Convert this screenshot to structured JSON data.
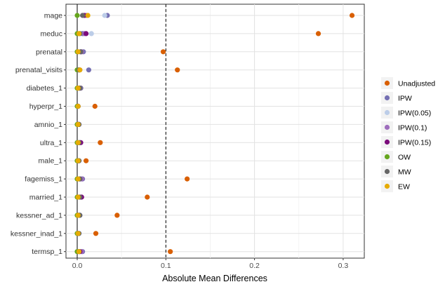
{
  "chart_data": {
    "type": "scatter",
    "title": "",
    "xlabel": "Absolute Mean Differences",
    "ylabel": "",
    "xlim": [
      -0.02,
      0.325
    ],
    "xticks": [
      0.0,
      0.1,
      0.2,
      0.3
    ],
    "xtick_labels": [
      "0.0",
      "0.1",
      "0.2",
      "0.3"
    ],
    "reference_lines": [
      {
        "x": 0.0,
        "style": "solid"
      },
      {
        "x": 0.1,
        "style": "dashed"
      }
    ],
    "grid": true,
    "legend_position": "right",
    "categories": [
      "mage",
      "meduc",
      "prenatal",
      "prenatal_visits",
      "diabetes_1",
      "hyperpr_1",
      "amnio_1",
      "ultra_1",
      "male_1",
      "fagemiss_1",
      "married_1",
      "kessner_ad_1",
      "kessner_inad_1",
      "termsp_1"
    ],
    "series": [
      {
        "name": "Unadjusted",
        "color": "#D95F02",
        "values": [
          0.31,
          0.272,
          0.097,
          0.113,
          0.004,
          0.02,
          0.002,
          0.026,
          0.01,
          0.124,
          0.079,
          0.045,
          0.021,
          0.105
        ]
      },
      {
        "name": "IPW",
        "color": "#7570B3",
        "values": [
          0.034,
          0.006,
          0.007,
          0.013,
          0.004,
          0.001,
          0.002,
          0.003,
          0.002,
          0.006,
          0.004,
          0.003,
          0.002,
          0.006
        ]
      },
      {
        "name": "IPW(0.05)",
        "color": "#BCCDE8",
        "values": [
          0.031,
          0.016,
          0.003,
          0.002,
          0.002,
          0.001,
          0.001,
          0.002,
          0.002,
          0.003,
          0.002,
          0.002,
          0.001,
          0.003
        ]
      },
      {
        "name": "IPW(0.1)",
        "color": "#9E6EBD",
        "values": [
          0.01,
          0.008,
          0.005,
          0.003,
          0.003,
          0.001,
          0.001,
          0.003,
          0.002,
          0.005,
          0.004,
          0.002,
          0.001,
          0.005
        ]
      },
      {
        "name": "IPW(0.15)",
        "color": "#7B0C7B",
        "values": [
          0.008,
          0.01,
          0.004,
          0.002,
          0.002,
          0.001,
          0.001,
          0.004,
          0.001,
          0.003,
          0.005,
          0.001,
          0.001,
          0.003
        ]
      },
      {
        "name": "OW",
        "color": "#66A61E",
        "values": [
          0.0,
          0.0,
          0.0,
          0.0,
          0.0,
          0.0,
          0.0,
          0.0,
          0.0,
          0.0,
          0.0,
          0.0,
          0.0,
          0.0
        ]
      },
      {
        "name": "MW",
        "color": "#666666",
        "values": [
          0.006,
          0.003,
          0.004,
          0.002,
          0.003,
          0.001,
          0.002,
          0.002,
          0.002,
          0.003,
          0.003,
          0.003,
          0.002,
          0.002
        ]
      },
      {
        "name": "EW",
        "color": "#E6AB02",
        "values": [
          0.012,
          0.002,
          0.001,
          0.003,
          0.001,
          0.001,
          0.001,
          0.001,
          0.001,
          0.001,
          0.001,
          0.001,
          0.001,
          0.002
        ]
      }
    ]
  }
}
